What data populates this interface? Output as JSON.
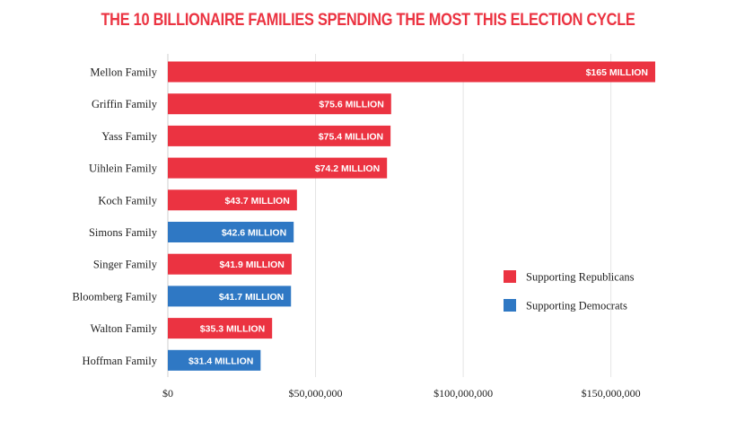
{
  "colors": {
    "republican": "#EB3341",
    "democrat": "#2F78C4",
    "grid": "#E4E4E4",
    "title": "#EB3341"
  },
  "chart_data": {
    "type": "bar",
    "orientation": "horizontal",
    "title": "THE 10 BILLIONAIRE FAMILIES SPENDING THE MOST THIS ELECTION CYCLE",
    "categories": [
      "Mellon Family",
      "Griffin Family",
      "Yass Family",
      "Uihlein Family",
      "Koch Family",
      "Simons Family",
      "Singer Family",
      "Bloomberg Family",
      "Walton Family",
      "Hoffman Family"
    ],
    "values": [
      165000000,
      75600000,
      75400000,
      74200000,
      43700000,
      42600000,
      41900000,
      41700000,
      35300000,
      31400000
    ],
    "data_labels": [
      "$165 MILLION",
      "$75.6 MILLION",
      "$75.4 MILLION",
      "$74.2 MILLION",
      "$43.7 MILLION",
      "$42.6 MILLION",
      "$41.9 MILLION",
      "$41.7 MILLION",
      "$35.3 MILLION",
      "$31.4 MILLION"
    ],
    "groups": [
      "republican",
      "republican",
      "republican",
      "republican",
      "republican",
      "democrat",
      "republican",
      "democrat",
      "republican",
      "democrat"
    ],
    "xlim": [
      0,
      165000000
    ],
    "xticks": [
      0,
      50000000,
      100000000,
      150000000
    ],
    "xtick_labels": [
      "$0",
      "$50,000,000",
      "$100,000,000",
      "$150,000,000"
    ],
    "grid": true,
    "legend": {
      "position": "right",
      "entries": [
        {
          "key": "republican",
          "label": "Supporting Republicans"
        },
        {
          "key": "democrat",
          "label": "Supporting Democrats"
        }
      ]
    }
  }
}
